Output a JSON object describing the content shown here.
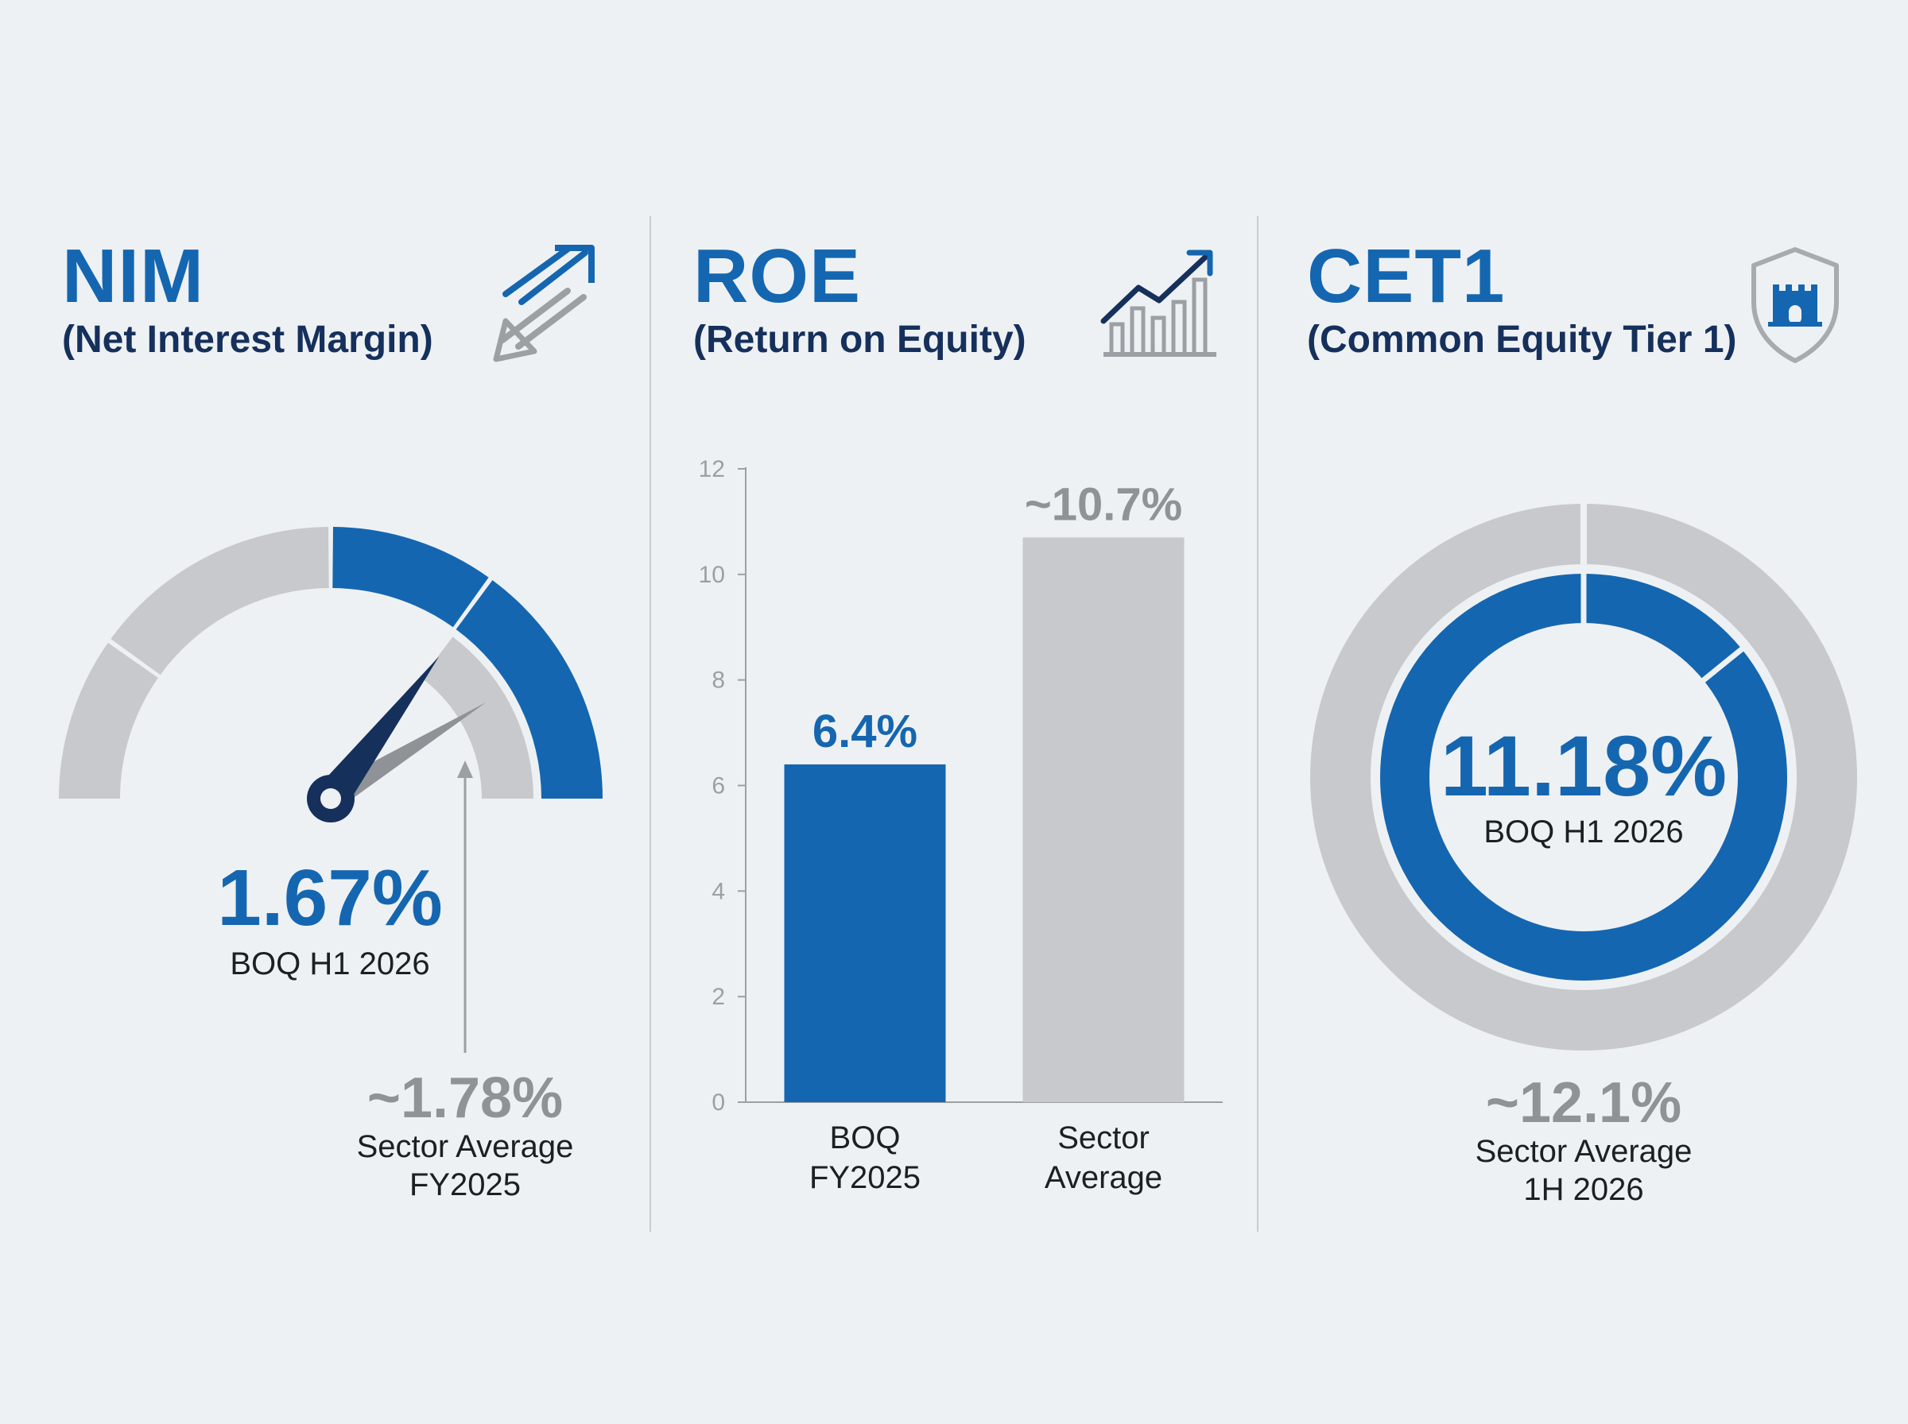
{
  "nim": {
    "title": "NIM",
    "subtitle": "(Net Interest Margin)",
    "icon": "double-arrow-icon",
    "value": "1.67%",
    "value_caption": "BOQ H1 2026",
    "sector_value": "~1.78%",
    "sector_caption_line1": "Sector Average",
    "sector_caption_line2": "FY2025"
  },
  "roe": {
    "title": "ROE",
    "subtitle": "(Return on Equity)",
    "icon": "bar-chart-trend-icon"
  },
  "cet1": {
    "title": "CET1",
    "subtitle": "(Common Equity Tier 1)",
    "icon": "castle-shield-icon",
    "value": "11.18%",
    "value_caption": "BOQ H1 2026",
    "sector_value": "~12.1%",
    "sector_caption_line1": "Sector Average",
    "sector_caption_line2": "1H 2026"
  },
  "colors": {
    "accent_blue": "#1566b0",
    "navy": "#16305c",
    "grey": "#c8c9cc",
    "grey_text": "#8f9398",
    "background": "#eef1f3"
  },
  "chart_data": [
    {
      "type": "gauge",
      "series": [
        {
          "name": "BOQ H1 2026",
          "value": 1.67,
          "value_label": "1.67%"
        },
        {
          "name": "Sector Average FY2025",
          "value": 1.78,
          "value_label": "~1.78%"
        }
      ]
    },
    {
      "type": "bar",
      "categories": [
        {
          "line1": "BOQ",
          "line2": "FY2025"
        },
        {
          "line1": "Sector",
          "line2": "Average"
        }
      ],
      "values": [
        6.4,
        10.7
      ],
      "data_labels": [
        "6.4%",
        "~10.7%"
      ],
      "ylim": [
        0,
        12
      ],
      "yticks": [
        0,
        2,
        4,
        6,
        8,
        10,
        12
      ],
      "grid": false
    },
    {
      "type": "donut",
      "series": [
        {
          "name": "BOQ H1 2026",
          "value": 11.18,
          "value_label": "11.18%",
          "ring": "inner"
        },
        {
          "name": "Sector Average 1H 2026",
          "value": 12.1,
          "value_label": "~12.1%",
          "ring": "outer"
        }
      ]
    }
  ]
}
